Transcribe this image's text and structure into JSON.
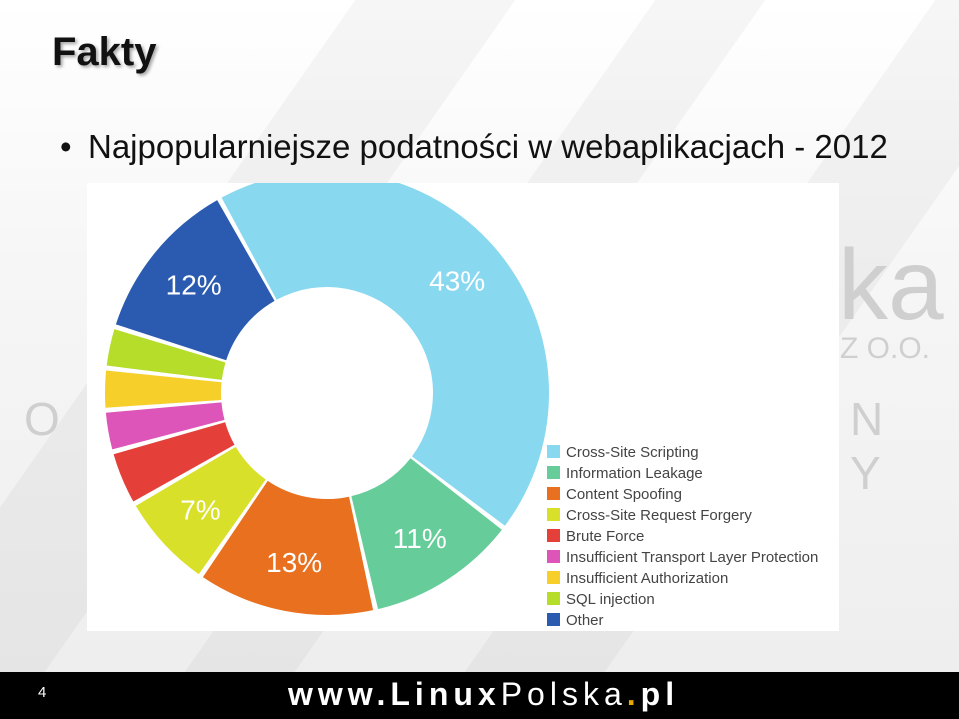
{
  "slide": {
    "title": "Fakty",
    "bullet": "Najpopularniejsze podatności w webaplikacjach - 2012",
    "page_number": "4"
  },
  "watermark": {
    "suffix": "ka",
    "spolka": "Z O.O.",
    "left_letter": "O",
    "right_letters": "N Y"
  },
  "footer": {
    "www": "www.",
    "linux": "Linux",
    "polska": "Polska",
    "dot": ".",
    "pl": "pl"
  },
  "chart_data": {
    "type": "pie",
    "style": "donut",
    "labels": [
      "Cross-Site Scripting",
      "Information Leakage",
      "Content Spoofing",
      "Cross-Site Request Forgery",
      "Brute Force",
      "Insufficient Transport Layer Protection",
      "Insufficient Authorization",
      "SQL injection",
      "Other"
    ],
    "values": [
      43,
      11,
      13,
      7,
      4,
      3,
      3,
      3,
      12
    ],
    "value_labels": [
      "43%",
      "11%",
      "13%",
      "7%",
      "",
      "",
      "",
      "",
      "12%"
    ],
    "colors": [
      "#88d8f0",
      "#66cc99",
      "#e8701e",
      "#d9e02a",
      "#e53f3a",
      "#dd55b8",
      "#f6cf2a",
      "#b6dd2a",
      "#2b5bb0"
    ],
    "legend": "right"
  }
}
